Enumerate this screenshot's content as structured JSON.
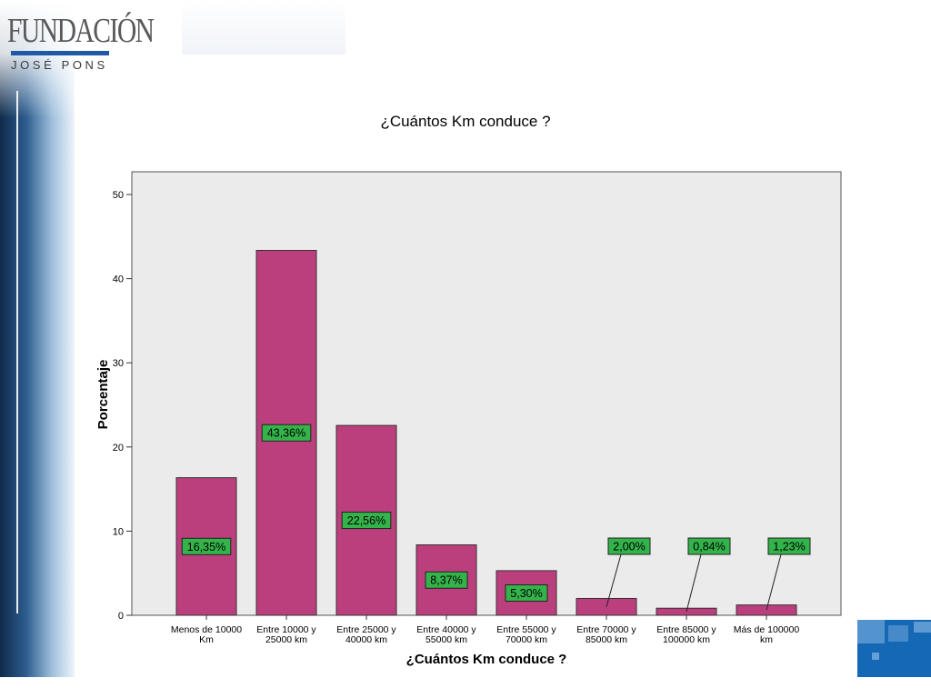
{
  "logo": {
    "line1": "FUNDACIÓN",
    "line2": "JOSÉ PONS"
  },
  "colors": {
    "bar": "#bc3f7d",
    "label_bg": "#33b34a",
    "plot_bg": "#ebebeb",
    "accent": "#1468b5"
  },
  "chart_data": {
    "type": "bar",
    "title": "¿Cuántos Km conduce ?",
    "xlabel": "¿Cuántos Km conduce ?",
    "ylabel": "Porcentaje",
    "ylim": [
      0,
      50
    ],
    "yticks": [
      0,
      10,
      20,
      30,
      40,
      50
    ],
    "categories": [
      [
        "Menos de 10000",
        "Km"
      ],
      [
        "Entre 10000 y",
        "25000 km"
      ],
      [
        "Entre 25000 y",
        "40000 km"
      ],
      [
        "Entre 40000 y",
        "55000 km"
      ],
      [
        "Entre 55000 y",
        "70000 km"
      ],
      [
        "Entre 70000 y",
        "85000 km"
      ],
      [
        "Entre 85000 y",
        "100000 km"
      ],
      [
        "Más de 100000",
        "km"
      ]
    ],
    "values": [
      16.35,
      43.36,
      22.56,
      8.37,
      5.3,
      2.0,
      0.84,
      1.23
    ],
    "data_labels": [
      "16,35%",
      "43,36%",
      "22,56%",
      "8,37%",
      "5,30%",
      "2,00%",
      "0,84%",
      "1,23%"
    ],
    "grid": false
  }
}
